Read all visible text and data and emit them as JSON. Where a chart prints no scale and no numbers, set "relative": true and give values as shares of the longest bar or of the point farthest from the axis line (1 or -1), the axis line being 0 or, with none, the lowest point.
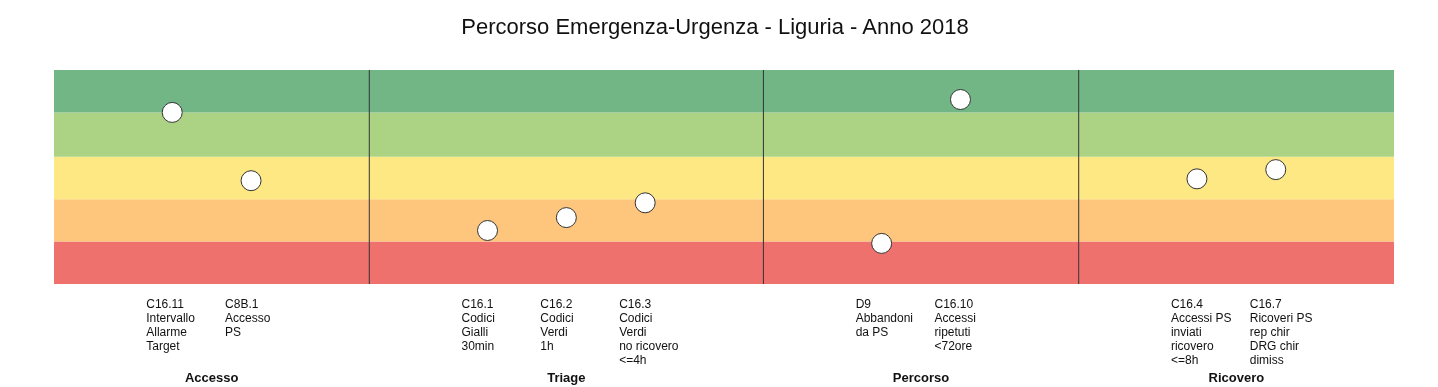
{
  "chart_data": {
    "type": "scatter",
    "title": "Percorso Emergenza-Urgenza - Liguria - Anno 2018",
    "relative": true,
    "marker": "circle",
    "categories": [
      null,
      "C16.11\nIntervallo\nAllarme\nTarget",
      "C8B.1\nAccesso\nPS",
      null,
      null,
      "C16.1\nCodici\nGialli\n30min",
      "C16.2\nCodici\nVerdi\n1h",
      "C16.3\nCodici\nVerdi\nno ricovero\n<=4h",
      null,
      null,
      "D9\nAbbandoni\nda PS",
      "C16.10\nAccessi\nripetuti\n<72ore",
      null,
      null,
      "C16.4\nAccessi PS\ninviati\nricovero\n<=8h",
      "C16.7\nRicoveri PS\nrep chir\nDRG chir\ndimiss",
      null
    ],
    "series": [
      {
        "color": "#ffffff",
        "values": [
          null,
          0.93,
          0.56,
          null,
          null,
          0.29,
          0.36,
          0.44,
          null,
          null,
          0.22,
          1,
          null,
          null,
          0.57,
          0.62,
          null
        ]
      }
    ],
    "bands": [
      {
        "axis": "y",
        "from": 0,
        "to": 0.23,
        "color": "#ef716e"
      },
      {
        "axis": "y",
        "from": 0.23,
        "to": 0.46,
        "color": "#fdc67c"
      },
      {
        "axis": "y",
        "from": 0.46,
        "to": 0.69,
        "color": "#fde883"
      },
      {
        "axis": "y",
        "from": 0.69,
        "to": 0.93,
        "color": "#acd384"
      },
      {
        "axis": "y",
        "from": 0.93,
        "to": 1.16,
        "color": "#72b685"
      }
    ],
    "annotations": [
      "Accesso",
      "Triage",
      "Percorso",
      "Ricovero"
    ]
  }
}
